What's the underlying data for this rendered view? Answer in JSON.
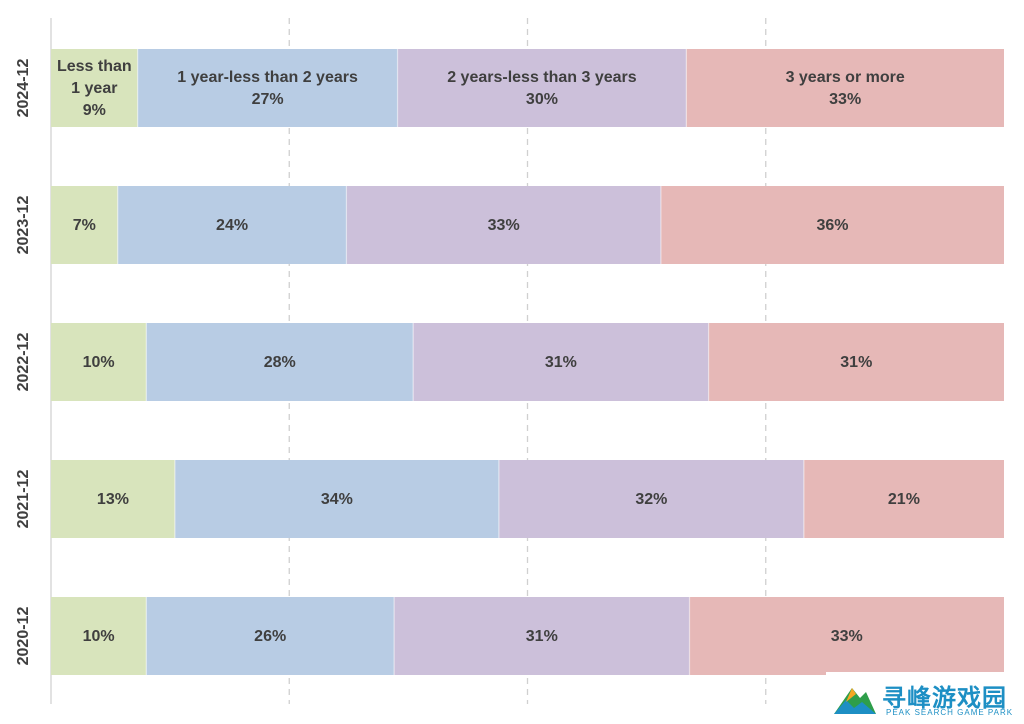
{
  "chart_data": {
    "type": "bar",
    "orientation": "horizontal-stacked-100",
    "categories": [
      "2024-12",
      "2023-12",
      "2022-12",
      "2021-12",
      "2020-12"
    ],
    "series": [
      {
        "name": "Less than 1 year",
        "values": [
          9,
          7,
          10,
          13,
          10
        ],
        "color": "#d8e4bc"
      },
      {
        "name": "1 year-less than 2 years",
        "values": [
          27,
          24,
          28,
          34,
          26
        ],
        "color": "#b8cce4"
      },
      {
        "name": "2 years-less than 3 years",
        "values": [
          30,
          33,
          31,
          32,
          31
        ],
        "color": "#ccc0da"
      },
      {
        "name": "3 years or more",
        "values": [
          33,
          36,
          31,
          21,
          33
        ],
        "color": "#e6b8b7"
      }
    ],
    "data_labels": [
      [
        [
          "Less than",
          "1 year",
          "9%"
        ],
        [
          "1 year-less than 2 years",
          "27%"
        ],
        [
          "2 years-less than 3 years",
          "30%"
        ],
        [
          "3 years or more",
          "33%"
        ]
      ],
      [
        [
          "7%"
        ],
        [
          "24%"
        ],
        [
          "33%"
        ],
        [
          "36%"
        ]
      ],
      [
        [
          "10%"
        ],
        [
          "28%"
        ],
        [
          "31%"
        ],
        [
          "31%"
        ]
      ],
      [
        [
          "13%"
        ],
        [
          "34%"
        ],
        [
          "32%"
        ],
        [
          "21%"
        ]
      ],
      [
        [
          "10%"
        ],
        [
          "26%"
        ],
        [
          "31%"
        ],
        [
          "33%"
        ]
      ]
    ],
    "xlim": [
      0,
      100
    ],
    "grid": {
      "vertical_dashed": true,
      "at": [
        25,
        50,
        75
      ]
    },
    "legend": "none",
    "gridline_color": "#d0d0d0",
    "axis_color": "#d9d9d9"
  },
  "watermark": {
    "text_cn": "寻峰游戏园",
    "text_en": "PEAK SEARCH GAME PARK",
    "color": "#1d8fc4",
    "icon": "mountain-logo-icon"
  }
}
